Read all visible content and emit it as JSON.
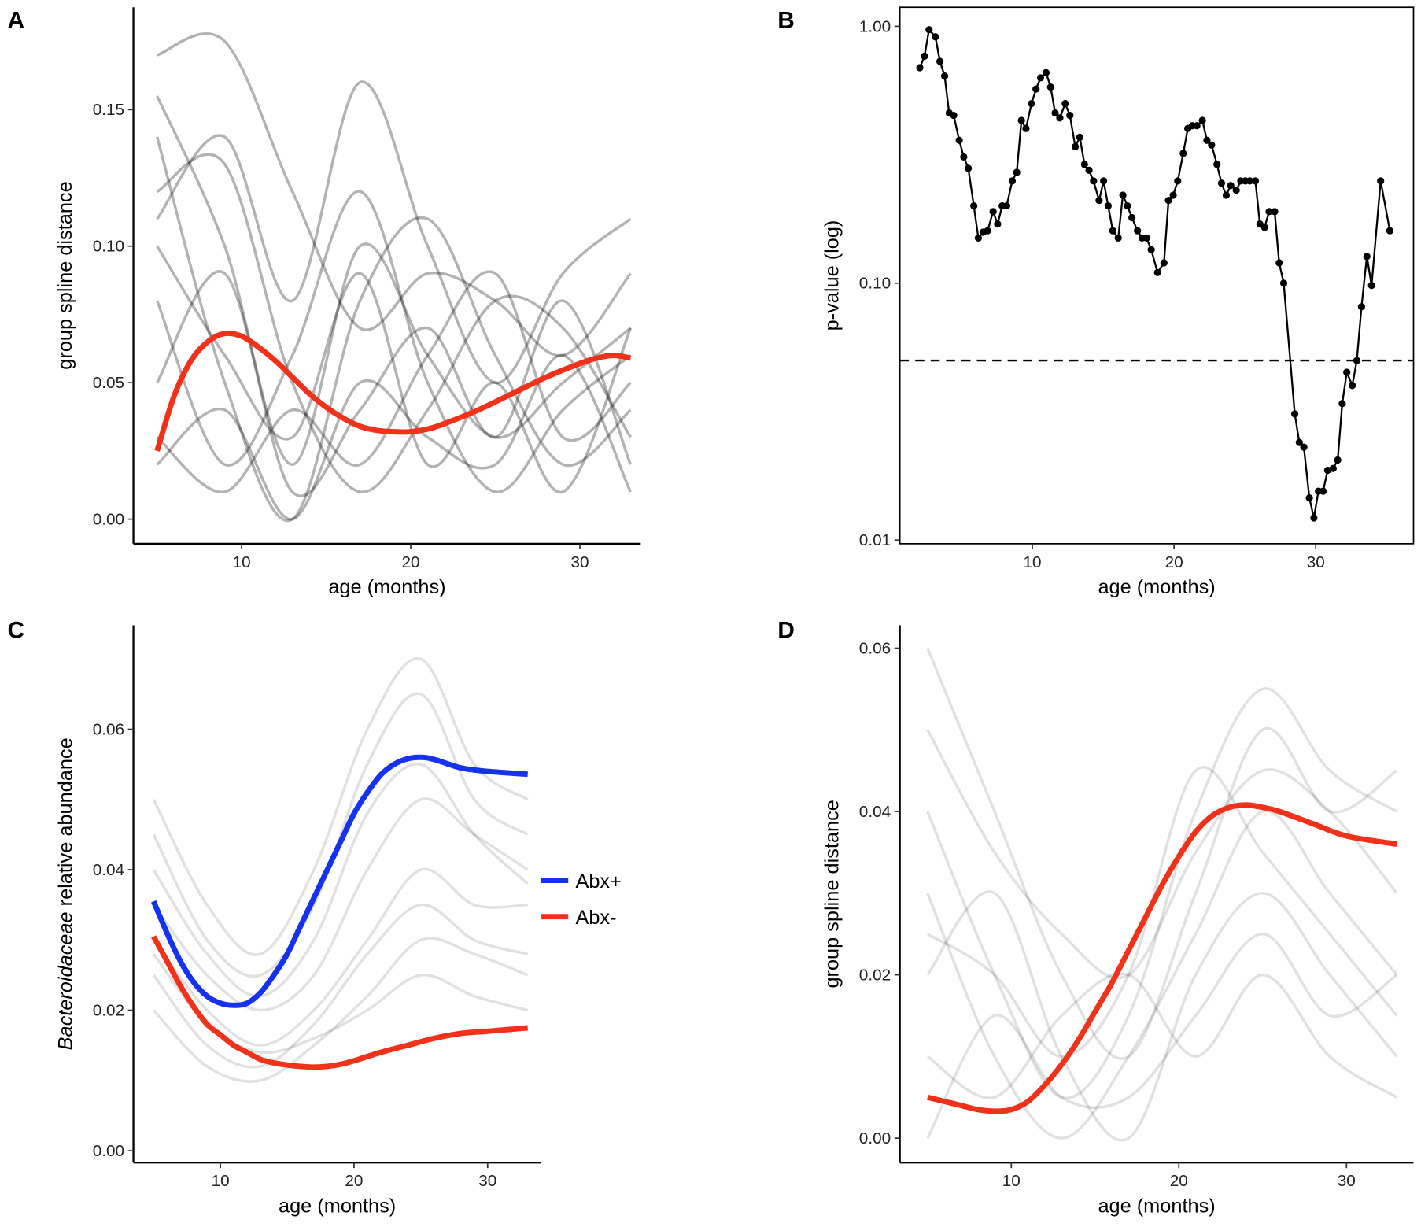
{
  "chart_data": [
    {
      "type": "line",
      "panel_label": "A",
      "x_label": "age (months)",
      "y_label": "group spline distance",
      "xlim": [
        3.6,
        33.6
      ],
      "ylim": [
        -0.009,
        0.1875
      ],
      "xticks": [
        10,
        20,
        30
      ],
      "yticks": [
        {
          "value": 0,
          "label": "0.00"
        },
        0.05,
        {
          "value": 0.1,
          "label": "0.10"
        },
        0.15
      ],
      "smooth": true,
      "background_color": "#000000",
      "background_opacity": 0.3,
      "background_x": [
        5,
        9,
        13,
        17,
        21,
        25,
        29,
        33
      ],
      "background_series": [
        [
          0.17,
          0.175,
          0.12,
          0.07,
          0.09,
          0.08,
          0.06,
          0.09
        ],
        [
          0.155,
          0.1,
          0.02,
          0.1,
          0.06,
          0.03,
          0.05,
          0.07
        ],
        [
          0.14,
          0.05,
          0.0,
          0.08,
          0.11,
          0.06,
          0.02,
          0.04
        ],
        [
          0.12,
          0.13,
          0.05,
          0.01,
          0.04,
          0.08,
          0.07,
          0.03
        ],
        [
          0.08,
          0.02,
          0.06,
          0.12,
          0.05,
          0.01,
          0.04,
          0.06
        ],
        [
          0.05,
          0.09,
          0.01,
          0.04,
          0.07,
          0.03,
          0.08,
          0.02
        ],
        [
          0.1,
          0.06,
          0.03,
          0.09,
          0.02,
          0.05,
          0.01,
          0.07
        ],
        [
          0.03,
          0.01,
          0.04,
          0.02,
          0.06,
          0.09,
          0.03,
          0.05
        ],
        [
          0.02,
          0.04,
          0.0,
          0.05,
          0.03,
          0.02,
          0.06,
          0.01
        ],
        [
          0.11,
          0.14,
          0.08,
          0.16,
          0.1,
          0.05,
          0.09,
          0.11
        ]
      ],
      "series": [
        {
          "color": "#f2311a",
          "x": [
            5,
            6,
            7,
            8,
            9,
            10,
            11,
            12,
            13,
            14,
            15,
            16,
            17,
            18,
            19,
            20,
            21,
            22,
            24,
            26,
            28,
            30,
            31,
            32,
            33
          ],
          "values": [
            0.025,
            0.045,
            0.058,
            0.065,
            0.068,
            0.067,
            0.063,
            0.058,
            0.052,
            0.046,
            0.041,
            0.037,
            0.034,
            0.0325,
            0.032,
            0.032,
            0.033,
            0.035,
            0.04,
            0.046,
            0.052,
            0.057,
            0.059,
            0.06,
            0.059
          ]
        }
      ]
    },
    {
      "type": "line",
      "panel_label": "B",
      "x_label": "age (months)",
      "y_label": "p-value (log)",
      "xlim": [
        0.65,
        36.9
      ],
      "ylim": [
        0.00968,
        1.186
      ],
      "log_y": true,
      "frame": "box",
      "markers": true,
      "xticks": [
        10,
        20,
        30
      ],
      "yticks": [
        {
          "value": 1,
          "label": "1.00"
        },
        {
          "value": 0.1,
          "label": "0.10"
        },
        0.01
      ],
      "hline": 0.05,
      "series": [
        {
          "color": "#000000",
          "x": [
            2.06,
            2.39,
            2.71,
            3.16,
            3.48,
            3.81,
            4.13,
            4.45,
            4.84,
            5.16,
            5.48,
            5.87,
            6.19,
            6.52,
            6.84,
            7.23,
            7.55,
            7.87,
            8.19,
            8.58,
            8.9,
            9.23,
            9.55,
            9.94,
            10.26,
            10.58,
            10.97,
            11.29,
            11.61,
            11.94,
            12.32,
            12.65,
            13.03,
            13.35,
            13.68,
            14.0,
            14.32,
            14.71,
            15.03,
            15.35,
            15.68,
            16.06,
            16.39,
            16.71,
            17.03,
            17.42,
            17.74,
            18.06,
            18.39,
            18.84,
            19.29,
            19.61,
            19.94,
            20.26,
            20.65,
            20.97,
            21.29,
            21.61,
            22.0,
            22.32,
            22.65,
            23.03,
            23.35,
            23.68,
            24.0,
            24.39,
            24.71,
            25.03,
            25.35,
            25.74,
            26.06,
            26.39,
            26.71,
            27.1,
            27.42,
            27.74,
            28.52,
            28.84,
            29.16,
            29.55,
            29.87,
            30.19,
            30.52,
            30.84,
            31.23,
            31.55,
            31.87,
            32.19,
            32.58,
            32.9,
            33.23,
            33.61,
            33.94,
            34.58,
            35.23
          ],
          "values": [
            0.69,
            0.765,
            0.97,
            0.91,
            0.73,
            0.64,
            0.46,
            0.45,
            0.36,
            0.31,
            0.28,
            0.2,
            0.15,
            0.158,
            0.16,
            0.19,
            0.17,
            0.2,
            0.2,
            0.25,
            0.27,
            0.43,
            0.4,
            0.5,
            0.57,
            0.63,
            0.66,
            0.58,
            0.46,
            0.44,
            0.5,
            0.45,
            0.34,
            0.37,
            0.29,
            0.275,
            0.25,
            0.21,
            0.25,
            0.2,
            0.16,
            0.15,
            0.22,
            0.2,
            0.18,
            0.16,
            0.15,
            0.15,
            0.135,
            0.11,
            0.12,
            0.21,
            0.22,
            0.25,
            0.32,
            0.4,
            0.41,
            0.41,
            0.43,
            0.36,
            0.345,
            0.29,
            0.245,
            0.22,
            0.24,
            0.23,
            0.25,
            0.25,
            0.25,
            0.25,
            0.17,
            0.165,
            0.19,
            0.19,
            0.12,
            0.1,
            0.031,
            0.024,
            0.023,
            0.0146,
            0.0122,
            0.0155,
            0.0155,
            0.0187,
            0.019,
            0.0205,
            0.034,
            0.045,
            0.04,
            0.05,
            0.081,
            0.127,
            0.098,
            0.25,
            0.16
          ]
        }
      ]
    },
    {
      "type": "line",
      "panel_label": "C",
      "x_label": "age (months)",
      "y_label_italic": "Bacteroidaceae",
      "y_label": "relative abundance",
      "xlim": [
        3.49,
        34.0
      ],
      "ylim": [
        -0.0017,
        0.0748
      ],
      "xticks": [
        10,
        20,
        30
      ],
      "yticks": [
        {
          "value": 0,
          "label": "0.00"
        },
        0.02,
        0.04,
        0.06
      ],
      "smooth": true,
      "legend": "right",
      "background_color": "#000000",
      "background_opacity": 0.12,
      "background_x": [
        5,
        9,
        13,
        17,
        21,
        25,
        29,
        33
      ],
      "background_series": [
        [
          0.045,
          0.03,
          0.025,
          0.035,
          0.055,
          0.065,
          0.05,
          0.045
        ],
        [
          0.035,
          0.025,
          0.02,
          0.025,
          0.04,
          0.05,
          0.045,
          0.04
        ],
        [
          0.03,
          0.02,
          0.015,
          0.02,
          0.03,
          0.04,
          0.035,
          0.035
        ],
        [
          0.025,
          0.015,
          0.012,
          0.018,
          0.028,
          0.035,
          0.03,
          0.028
        ],
        [
          0.04,
          0.028,
          0.022,
          0.03,
          0.048,
          0.055,
          0.045,
          0.038
        ],
        [
          0.02,
          0.012,
          0.01,
          0.015,
          0.022,
          0.03,
          0.028,
          0.025
        ],
        [
          0.05,
          0.035,
          0.028,
          0.04,
          0.06,
          0.07,
          0.055,
          0.05
        ],
        [
          0.028,
          0.018,
          0.014,
          0.016,
          0.02,
          0.025,
          0.022,
          0.02
        ]
      ],
      "series": [
        {
          "name": "Abx+",
          "color": "#1432f0",
          "x": [
            5,
            6,
            7,
            8,
            9,
            10,
            11,
            12,
            13,
            14,
            15,
            16,
            17,
            18,
            19,
            20,
            21,
            22,
            23,
            24,
            25,
            26,
            28,
            30,
            33
          ],
          "values": [
            0.0355,
            0.031,
            0.027,
            0.024,
            0.022,
            0.021,
            0.0207,
            0.021,
            0.0225,
            0.025,
            0.028,
            0.032,
            0.036,
            0.04,
            0.044,
            0.048,
            0.051,
            0.0535,
            0.055,
            0.0558,
            0.056,
            0.0557,
            0.0545,
            0.054,
            0.0536
          ]
        },
        {
          "name": "Abx-",
          "color": "#f2311a",
          "x": [
            5,
            6,
            7,
            8,
            9,
            10,
            11,
            12,
            13,
            14,
            15,
            16,
            17,
            18,
            19,
            20,
            22,
            24,
            26,
            28,
            30,
            33
          ],
          "values": [
            0.0305,
            0.027,
            0.0235,
            0.0205,
            0.018,
            0.0165,
            0.015,
            0.014,
            0.013,
            0.0125,
            0.0122,
            0.012,
            0.0119,
            0.012,
            0.0123,
            0.0128,
            0.014,
            0.015,
            0.016,
            0.0167,
            0.017,
            0.0175
          ]
        }
      ]
    },
    {
      "type": "line",
      "panel_label": "D",
      "x_label": "age (months)",
      "y_label": "group spline distance",
      "xlim": [
        3.35,
        34.0
      ],
      "ylim": [
        -0.003,
        0.0628
      ],
      "xticks": [
        10,
        20,
        30
      ],
      "yticks": [
        {
          "value": 0,
          "label": "0.00"
        },
        0.02,
        0.04,
        0.06
      ],
      "smooth": true,
      "background_color": "#000000",
      "background_opacity": 0.12,
      "background_x": [
        5,
        9,
        13,
        17,
        21,
        25,
        29,
        33
      ],
      "background_series": [
        [
          0.06,
          0.04,
          0.02,
          0.01,
          0.03,
          0.05,
          0.04,
          0.045
        ],
        [
          0.04,
          0.02,
          0.005,
          0.015,
          0.04,
          0.055,
          0.045,
          0.04
        ],
        [
          0.03,
          0.01,
          0.0,
          0.01,
          0.025,
          0.04,
          0.03,
          0.02
        ],
        [
          0.02,
          0.03,
          0.01,
          0.0,
          0.02,
          0.03,
          0.02,
          0.01
        ],
        [
          0.01,
          0.005,
          0.015,
          0.02,
          0.01,
          0.02,
          0.01,
          0.005
        ],
        [
          0.05,
          0.035,
          0.025,
          0.02,
          0.035,
          0.045,
          0.04,
          0.03
        ],
        [
          0.0,
          0.015,
          0.005,
          0.005,
          0.015,
          0.025,
          0.015,
          0.02
        ],
        [
          0.025,
          0.02,
          0.01,
          0.02,
          0.045,
          0.035,
          0.025,
          0.015
        ]
      ],
      "series": [
        {
          "color": "#f2311a",
          "x": [
            5,
            6,
            7,
            8,
            9,
            10,
            11,
            12,
            13,
            14,
            15,
            16,
            17,
            18,
            19,
            20,
            21,
            22,
            23,
            24,
            25,
            26,
            28,
            30,
            33
          ],
          "values": [
            0.005,
            0.0045,
            0.004,
            0.0035,
            0.0033,
            0.0035,
            0.0045,
            0.0065,
            0.009,
            0.012,
            0.0155,
            0.019,
            0.023,
            0.027,
            0.031,
            0.0345,
            0.0375,
            0.0395,
            0.0405,
            0.0408,
            0.0405,
            0.04,
            0.0385,
            0.037,
            0.036
          ]
        }
      ]
    }
  ]
}
